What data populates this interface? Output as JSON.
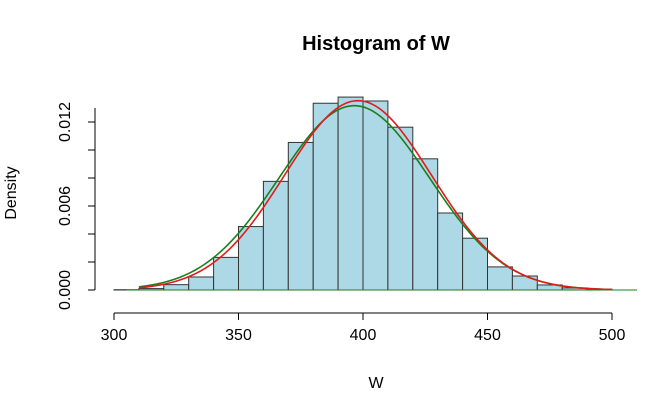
{
  "chart_data": {
    "type": "bar",
    "title": "Histogram of W",
    "xlabel": "W",
    "ylabel": "Density",
    "xlim": [
      300,
      500
    ],
    "ylim": [
      0,
      0.014
    ],
    "x_ticks": [
      300,
      350,
      400,
      450,
      500
    ],
    "y_ticks": [
      0.0,
      0.006,
      0.012
    ],
    "y_tick_labels": [
      "0.000",
      "0.006",
      "0.012"
    ],
    "grid": false,
    "legend": "none",
    "colors": {
      "bars": "#add8e6",
      "bar_outline": "#333333",
      "normal_curve": "#e31a1c",
      "density_curve": "#1a7f1a"
    },
    "bins": [
      {
        "from": 300,
        "to": 310,
        "density": 2e-05
      },
      {
        "from": 310,
        "to": 320,
        "density": 0.0001
      },
      {
        "from": 320,
        "to": 330,
        "density": 0.00038
      },
      {
        "from": 330,
        "to": 340,
        "density": 0.00093
      },
      {
        "from": 340,
        "to": 350,
        "density": 0.00233
      },
      {
        "from": 350,
        "to": 360,
        "density": 0.00453
      },
      {
        "from": 360,
        "to": 370,
        "density": 0.00776
      },
      {
        "from": 370,
        "to": 380,
        "density": 0.01054
      },
      {
        "from": 380,
        "to": 390,
        "density": 0.01334
      },
      {
        "from": 390,
        "to": 400,
        "density": 0.01378
      },
      {
        "from": 400,
        "to": 410,
        "density": 0.0135
      },
      {
        "from": 410,
        "to": 420,
        "density": 0.01163
      },
      {
        "from": 420,
        "to": 430,
        "density": 0.00937
      },
      {
        "from": 430,
        "to": 440,
        "density": 0.0055
      },
      {
        "from": 440,
        "to": 450,
        "density": 0.0037
      },
      {
        "from": 450,
        "to": 460,
        "density": 0.00165
      },
      {
        "from": 460,
        "to": 470,
        "density": 0.001
      },
      {
        "from": 470,
        "to": 480,
        "density": 0.00036
      },
      {
        "from": 480,
        "to": 490,
        "density": 0.00015
      },
      {
        "from": 490,
        "to": 500,
        "density": 5e-05
      }
    ],
    "curves": [
      {
        "kind": "normal",
        "mean": 398,
        "sd": 29.5,
        "color_key": "normal_curve"
      },
      {
        "kind": "normal",
        "mean": 396.5,
        "sd": 30.3,
        "color_key": "density_curve"
      }
    ]
  }
}
